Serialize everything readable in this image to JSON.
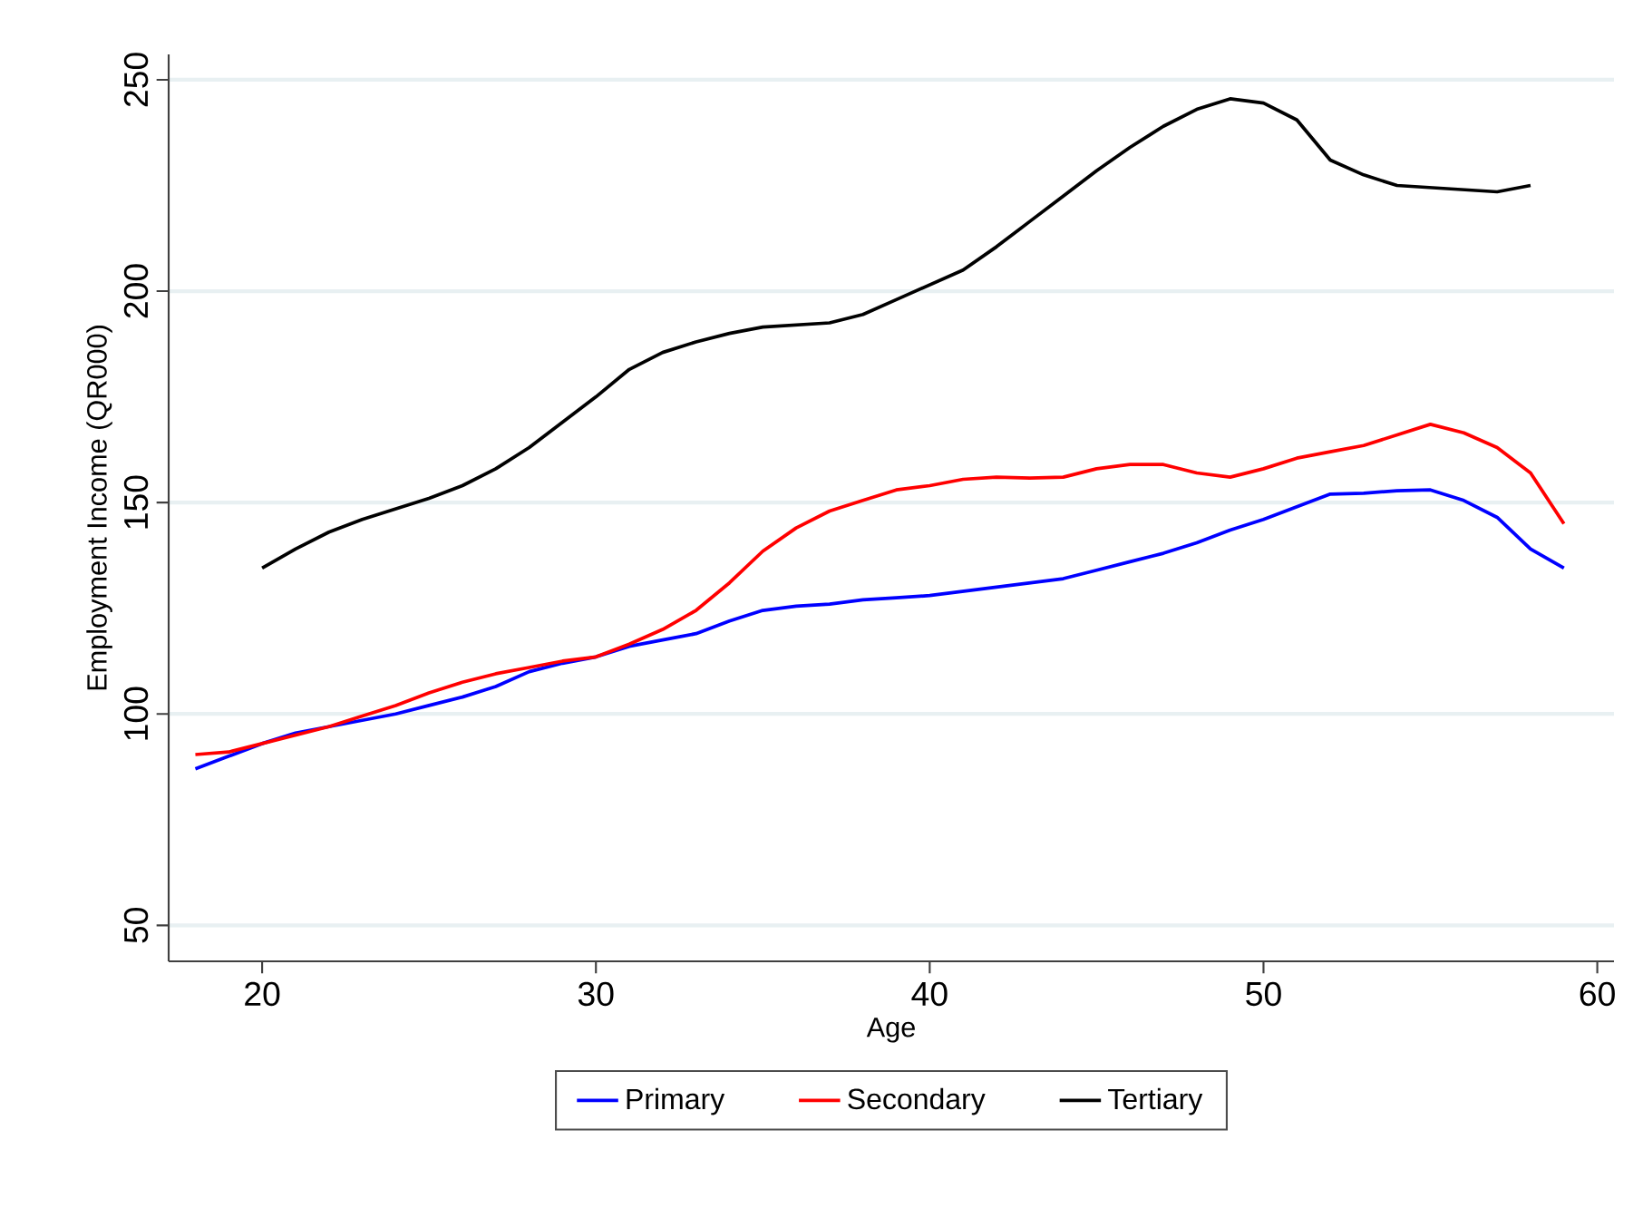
{
  "chart_data": {
    "type": "line",
    "xlabel": "Age",
    "ylabel": "Employment Income (QR000)",
    "xlim": [
      17.2,
      60.5
    ],
    "ylim": [
      41.5,
      256
    ],
    "xticks": [
      20,
      30,
      40,
      50,
      60
    ],
    "yticks": [
      50,
      100,
      150,
      200,
      250
    ],
    "grid": "y",
    "legend": "bottom",
    "marker": "none",
    "line_style": "solid",
    "series": [
      {
        "name": "Primary",
        "color": "#0000ff",
        "x": [
          18,
          19,
          20,
          21,
          22,
          23,
          24,
          25,
          26,
          27,
          28,
          29,
          30,
          31,
          32,
          33,
          34,
          35,
          36,
          37,
          38,
          39,
          40,
          41,
          42,
          43,
          44,
          45,
          46,
          47,
          48,
          49,
          50,
          51,
          52,
          53,
          54,
          55,
          56,
          57,
          58,
          59
        ],
        "values": [
          87,
          90,
          93,
          95.5,
          97,
          98.5,
          100,
          102,
          104,
          106.5,
          110,
          112,
          113.5,
          116,
          117.5,
          119,
          122,
          124.5,
          125.5,
          126,
          127,
          127.5,
          128,
          129,
          130,
          131,
          132,
          134,
          136,
          138,
          140.5,
          143.5,
          146,
          149,
          152,
          152.2,
          152.8,
          153,
          150.5,
          146.5,
          139,
          134.5
        ]
      },
      {
        "name": "Secondary",
        "color": "#ff0000",
        "x": [
          18,
          19,
          20,
          21,
          22,
          23,
          24,
          25,
          26,
          27,
          28,
          29,
          30,
          31,
          32,
          33,
          34,
          35,
          36,
          37,
          38,
          39,
          40,
          41,
          42,
          43,
          44,
          45,
          46,
          47,
          48,
          49,
          50,
          51,
          52,
          53,
          54,
          55,
          56,
          57,
          58,
          59
        ],
        "values": [
          90.4,
          91,
          93,
          95,
          97,
          99.5,
          102,
          105,
          107.5,
          109.5,
          111,
          112.5,
          113.5,
          116.5,
          120,
          124.5,
          131,
          138.5,
          144,
          148,
          150.5,
          153,
          154,
          155.5,
          156,
          155.8,
          156,
          158,
          159,
          159,
          157,
          156,
          158,
          160.5,
          162,
          163.5,
          166,
          168.5,
          166.5,
          163,
          157,
          145
        ]
      },
      {
        "name": "Tertiary",
        "color": "#000000",
        "x": [
          20,
          21,
          22,
          23,
          24,
          25,
          26,
          27,
          28,
          29,
          30,
          31,
          32,
          33,
          34,
          35,
          36,
          37,
          38,
          39,
          40,
          41,
          42,
          43,
          44,
          45,
          46,
          47,
          48,
          49,
          50,
          51,
          52,
          53,
          54,
          55,
          56,
          57,
          58
        ],
        "values": [
          134.5,
          139,
          143,
          146,
          148.5,
          151,
          154,
          158,
          163,
          169,
          175,
          181.5,
          185.5,
          188,
          190,
          191.5,
          192,
          192.5,
          194.5,
          198,
          201.5,
          205,
          210.5,
          216.5,
          222.5,
          228.5,
          234,
          239,
          243,
          245.5,
          244.5,
          240.5,
          231,
          227.5,
          225,
          224.5,
          224,
          223.5,
          225
        ]
      }
    ]
  }
}
